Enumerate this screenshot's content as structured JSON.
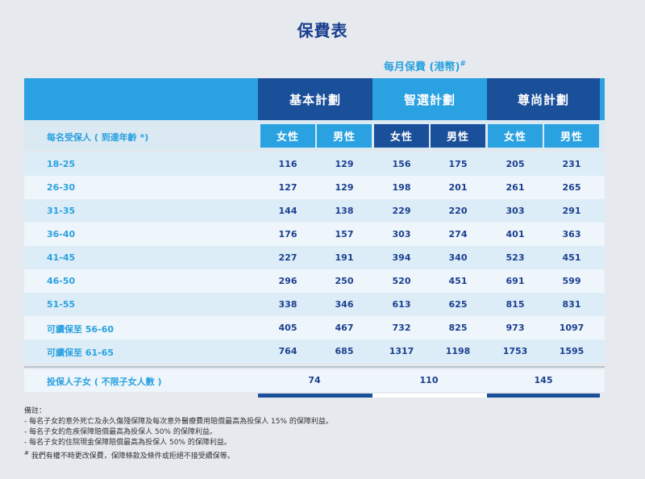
{
  "title": "保費表",
  "premium_caption": "每月保費 (港幣)",
  "premium_caption_mark": "#",
  "plans": [
    {
      "name": "基本計劃",
      "female": "女性",
      "male": "男性"
    },
    {
      "name": "智選計劃",
      "female": "女性",
      "male": "男性"
    },
    {
      "name": "尊尚計劃",
      "female": "女性",
      "male": "男性"
    }
  ],
  "age_column_header": "每名受保人 ( 到達年齡 *)",
  "rows": [
    {
      "age": "18-25",
      "values": [
        "116",
        "129",
        "156",
        "175",
        "205",
        "231"
      ]
    },
    {
      "age": "26-30",
      "values": [
        "127",
        "129",
        "198",
        "201",
        "261",
        "265"
      ]
    },
    {
      "age": "31-35",
      "values": [
        "144",
        "138",
        "229",
        "220",
        "303",
        "291"
      ]
    },
    {
      "age": "36-40",
      "values": [
        "176",
        "157",
        "303",
        "274",
        "401",
        "363"
      ]
    },
    {
      "age": "41-45",
      "values": [
        "227",
        "191",
        "394",
        "340",
        "523",
        "451"
      ]
    },
    {
      "age": "46-50",
      "values": [
        "296",
        "250",
        "520",
        "451",
        "691",
        "599"
      ]
    },
    {
      "age": "51-55",
      "values": [
        "338",
        "346",
        "613",
        "625",
        "815",
        "831"
      ]
    },
    {
      "age": "可續保至 56-60",
      "values": [
        "405",
        "467",
        "732",
        "825",
        "973",
        "1097"
      ]
    },
    {
      "age": "可續保至 61-65",
      "values": [
        "764",
        "685",
        "1317",
        "1198",
        "1753",
        "1595"
      ]
    }
  ],
  "child_row": {
    "label": "投保人子女 ( 不限子女人數 )",
    "values": [
      "74",
      "110",
      "145"
    ]
  },
  "notes": {
    "heading": "備註：",
    "lines": [
      "- 每名子女的意外死亡及永久傷殘保障及每次意外醫療費用賠償最高為投保人 15% 的保障利益。",
      "- 每名子女的危疾保障賠償最高為投保人 50% 的保障利益。",
      "- 每名子女的住院現金保障賠償最高為投保人 50% 的保障利益。"
    ],
    "footnote_mark": "#",
    "footnote": " 我們有權不時更改保費，保障條款及條件或拒絕不接受續保等。"
  },
  "colors": {
    "title": "#1b3f8f",
    "accent_blue": "#2aa1e0",
    "dark_blue": "#1a4f9a",
    "row_odd": "#ddedf8",
    "row_even": "#eef5fb",
    "background": "#e6eaee"
  }
}
